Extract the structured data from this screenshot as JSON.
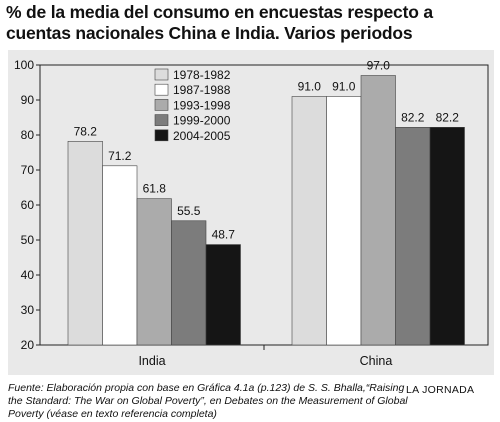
{
  "title": {
    "line1": "% de la media del consumo en encuestas respecto a",
    "line2": "cuentas nacionales China e India. Varios periodos"
  },
  "footer": {
    "source": "Fuente: Elaboración propia con base en Gráfica 4.1a (p.123) de S. S. Bhalla,“Raising the Standard: The War on Global Poverty”, en Debates on the Measurement of Global Poverty (véase en texto referencia completa)",
    "credit": "LA JORNADA"
  },
  "chart_data": {
    "type": "bar",
    "categories": [
      "India",
      "China"
    ],
    "series": [
      {
        "name": "1978-1982",
        "values": [
          78.2,
          91.0
        ],
        "color": "#dcdcdc"
      },
      {
        "name": "1987-1988",
        "values": [
          71.2,
          91.0
        ],
        "color": "#ffffff"
      },
      {
        "name": "1993-1998",
        "values": [
          61.8,
          97.0
        ],
        "color": "#ababab"
      },
      {
        "name": "1999-2000",
        "values": [
          55.5,
          82.2
        ],
        "color": "#7c7c7c"
      },
      {
        "name": "2004-2005",
        "values": [
          48.7,
          82.2
        ],
        "color": "#151515"
      }
    ],
    "value_labels": [
      [
        "78.2",
        "91.0"
      ],
      [
        "71.2",
        "91.0"
      ],
      [
        "61.8",
        "97.0"
      ],
      [
        "55.5",
        "82.2"
      ],
      [
        "48.7",
        "82.2"
      ]
    ],
    "yticks": [
      20,
      30,
      40,
      50,
      60,
      70,
      80,
      90,
      100
    ],
    "ytick_labels": [
      "20",
      "30",
      "40",
      "50",
      "60",
      "70",
      "80",
      "90",
      "100"
    ],
    "ylim": [
      20,
      100
    ],
    "xlabel": "",
    "ylabel": "",
    "grid": false,
    "legend_position": "top-left"
  }
}
